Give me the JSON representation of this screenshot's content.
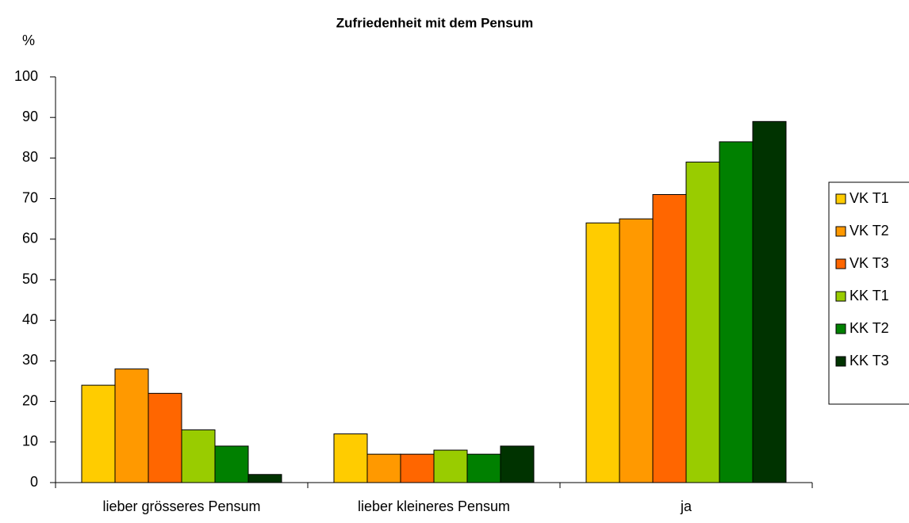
{
  "chart_data": {
    "type": "bar",
    "title": "Zufriedenheit mit dem Pensum",
    "y_label": "%",
    "categories": [
      "lieber grösseres Pensum",
      "lieber kleineres Pensum",
      "ja"
    ],
    "series": [
      {
        "name": "VK T1",
        "color": "#ffcc00",
        "values": [
          24,
          12,
          64
        ]
      },
      {
        "name": "VK T2",
        "color": "#ff9900",
        "values": [
          28,
          7,
          65
        ]
      },
      {
        "name": "VK T3",
        "color": "#ff6600",
        "values": [
          22,
          7,
          71
        ]
      },
      {
        "name": "KK T1",
        "color": "#99cc00",
        "values": [
          13,
          8,
          79
        ]
      },
      {
        "name": "KK T2",
        "color": "#008000",
        "values": [
          9,
          7,
          84
        ]
      },
      {
        "name": "KK T3",
        "color": "#003300",
        "values": [
          2,
          9,
          89
        ]
      }
    ],
    "ylim": [
      0,
      100
    ],
    "yticks": [
      0,
      10,
      20,
      30,
      40,
      50,
      60,
      70,
      80,
      90,
      100
    ],
    "grid": false,
    "legend": "right"
  }
}
